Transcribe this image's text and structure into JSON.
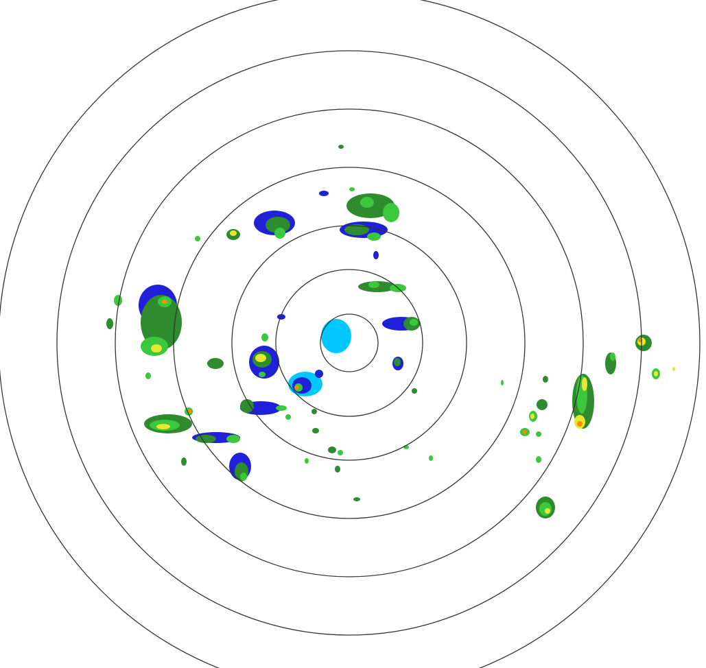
{
  "radar": {
    "ring_count": 7,
    "ring_color": "#333333",
    "background": "#ffffff",
    "reflectivity_colors": {
      "very_light": "#00c8ff",
      "light": "#2020d8",
      "moderate_dark": "#2e8b2e",
      "moderate": "#3cc83c",
      "heavy": "#e8e830",
      "very_heavy": "#ff8c00",
      "intense": "#e02020"
    }
  }
}
